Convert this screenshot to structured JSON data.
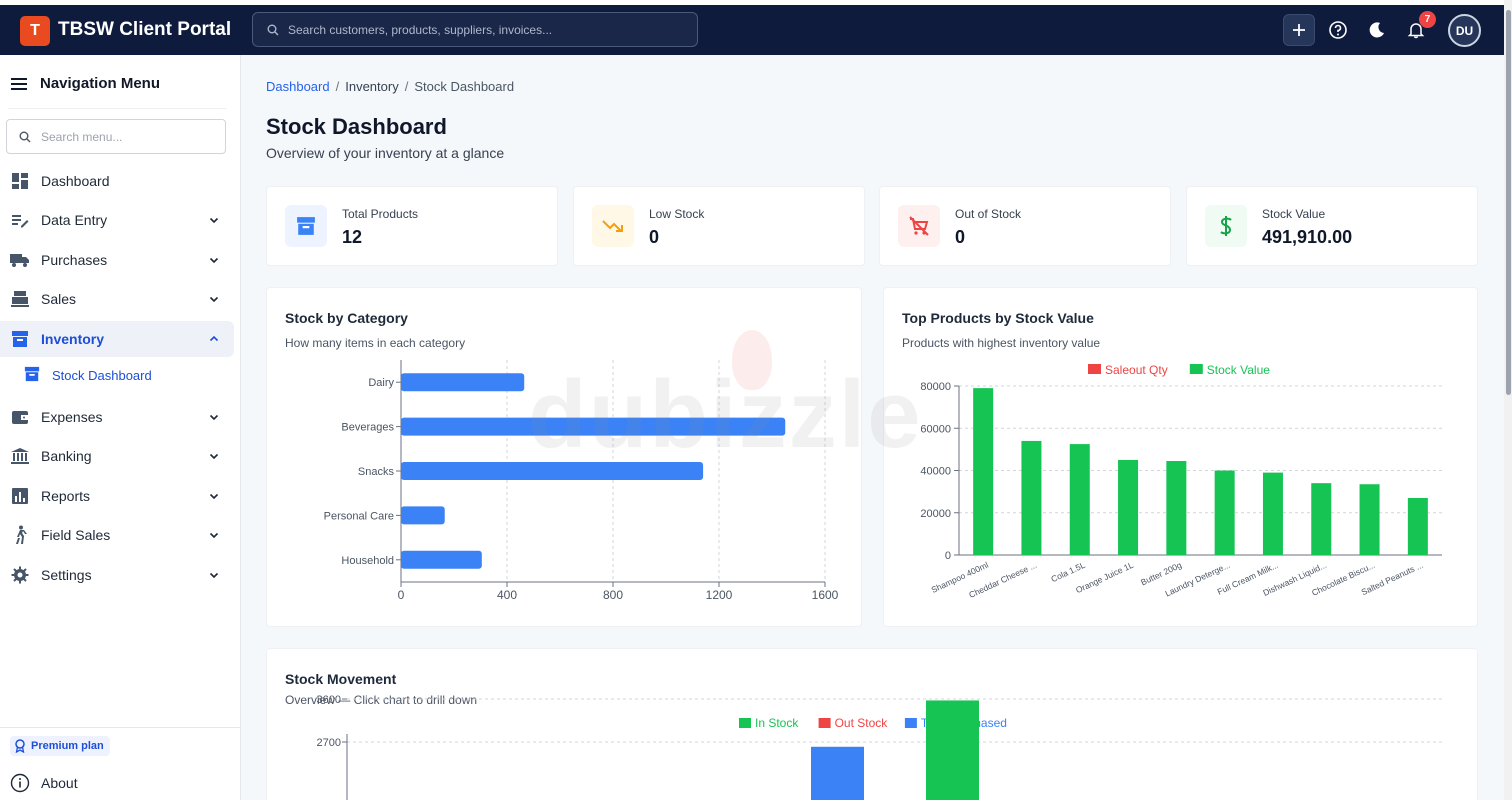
{
  "app": {
    "logo_letter": "T",
    "title": "TBSW Client Portal"
  },
  "header": {
    "search_placeholder": "Search customers, products, suppliers, invoices...",
    "notification_count": "7",
    "avatar_initials": "DU"
  },
  "sidebar": {
    "title": "Navigation Menu",
    "search_placeholder": "Search menu...",
    "items": [
      {
        "label": "Dashboard",
        "icon": "dashboard-icon"
      },
      {
        "label": "Data Entry",
        "icon": "edit-icon"
      },
      {
        "label": "Purchases",
        "icon": "truck-icon"
      },
      {
        "label": "Sales",
        "icon": "register-icon"
      },
      {
        "label": "Inventory",
        "icon": "archive-icon"
      },
      {
        "label": "Expenses",
        "icon": "wallet-icon"
      },
      {
        "label": "Banking",
        "icon": "bank-icon"
      },
      {
        "label": "Reports",
        "icon": "bar-chart-icon"
      },
      {
        "label": "Field Sales",
        "icon": "walk-icon"
      },
      {
        "label": "Settings",
        "icon": "gear-icon"
      }
    ],
    "sub_item": {
      "label": "Stock Dashboard"
    },
    "premium": "Premium plan",
    "about": "About"
  },
  "breadcrumb": {
    "home": "Dashboard",
    "section": "Inventory",
    "current": "Stock Dashboard"
  },
  "page": {
    "title": "Stock Dashboard",
    "subtitle": "Overview of your inventory at a glance"
  },
  "kpis": [
    {
      "label": "Total Products",
      "value": "12",
      "color": "#3b82f6"
    },
    {
      "label": "Low Stock",
      "value": "0",
      "color": "#f59e0b"
    },
    {
      "label": "Out of Stock",
      "value": "0",
      "color": "#ef4444"
    },
    {
      "label": "Stock Value",
      "value": "491,910.00",
      "color": "#16a34a"
    }
  ],
  "cards": {
    "category": {
      "title": "Stock by Category",
      "subtitle": "How many items in each category"
    },
    "top": {
      "title": "Top Products by Stock Value",
      "subtitle": "Products with highest inventory value"
    },
    "movement": {
      "title": "Stock Movement",
      "subtitle": "Overview — Click chart to drill down"
    }
  },
  "watermark": "dubizzle",
  "chart_data": [
    {
      "type": "bar",
      "orientation": "horizontal",
      "categories": [
        "Dairy",
        "Beverages",
        "Snacks",
        "Personal Care",
        "Household"
      ],
      "values": [
        465,
        1450,
        1140,
        165,
        305
      ],
      "xlim": [
        0,
        1600
      ],
      "xticks": [
        0,
        400,
        800,
        1200,
        1600
      ],
      "color": "#3b82f6",
      "grid": true
    },
    {
      "type": "bar",
      "categories": [
        "Shampoo 400ml",
        "Cheddar Cheese ...",
        "Cola 1.5L",
        "Orange Juice 1L",
        "Butter 200g",
        "Laundry Deterge...",
        "Full Cream Milk...",
        "Dishwash Liquid...",
        "Chocolate Biscu...",
        "Salted Peanuts ..."
      ],
      "series": [
        {
          "name": "Saleout Qty",
          "color": "#ef4444",
          "values": [
            0,
            0,
            0,
            0,
            0,
            0,
            0,
            0,
            0,
            0
          ]
        },
        {
          "name": "Stock Value",
          "color": "#16c454",
          "values": [
            79000,
            54000,
            52500,
            45000,
            44500,
            40000,
            39000,
            34000,
            33500,
            27000
          ]
        }
      ],
      "ylim": [
        0,
        80000
      ],
      "yticks": [
        0,
        20000,
        40000,
        60000,
        80000
      ],
      "legend": "top",
      "grid": true
    },
    {
      "type": "bar",
      "series": [
        {
          "name": "In Stock",
          "color": "#16c454",
          "values": [
            3570
          ]
        },
        {
          "name": "Out Stock",
          "color": "#ef4444",
          "values": []
        },
        {
          "name": "Total Purchased",
          "color": "#3b82f6",
          "values": [
            2600
          ]
        }
      ],
      "ylim": [
        0,
        3600
      ],
      "yticks": [
        2700,
        3600
      ],
      "legend": "top",
      "grid": true
    }
  ]
}
